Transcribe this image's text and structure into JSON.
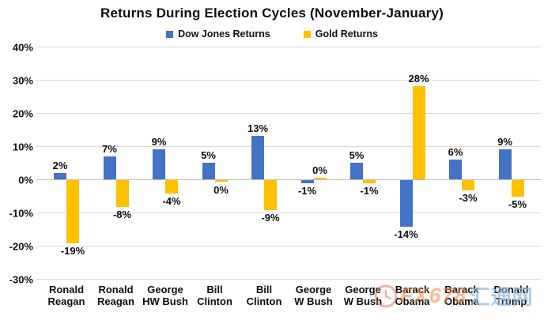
{
  "chart_data": {
    "type": "bar",
    "title": "Returns During Election Cycles (November-January)",
    "categories": [
      "Ronald\nReagan",
      "Ronald\nReagan",
      "George\nHW Bush",
      "Bill\nClinton",
      "Bill\nClinton",
      "George\nW Bush",
      "George\nW Bush",
      "Barack\nObama",
      "Barack\nObama",
      "Donald\nTrump"
    ],
    "series": [
      {
        "name": "Dow Jones Returns",
        "color": "#4472C4",
        "values": [
          2,
          7,
          9,
          5,
          13,
          -1,
          5,
          -14,
          6,
          9
        ]
      },
      {
        "name": "Gold Returns",
        "color": "#FFC000",
        "values": [
          -19,
          -8,
          -4,
          0,
          -9,
          0,
          -1,
          28,
          -3,
          -5
        ]
      }
    ],
    "data_labels": [
      [
        "2%",
        "7%",
        "9%",
        "5%",
        "13%",
        "-1%",
        "5%",
        "-14%",
        "6%",
        "9%"
      ],
      [
        "-19%",
        "-8%",
        "-4%",
        "0%",
        "-9%",
        "0%",
        "-1%",
        "28%",
        "-3%",
        "-5%"
      ]
    ],
    "gold_zero_label_sides": {
      "3": "below",
      "5": "above"
    },
    "ylim": [
      -30,
      40
    ],
    "ytick_step": 10,
    "ytick_suffix": "%",
    "grid": true,
    "gridline_color": "#d9d9d9",
    "legend_position": "top"
  },
  "watermark": {
    "text_fx": "FX678",
    "text_cn": "汇通网"
  }
}
